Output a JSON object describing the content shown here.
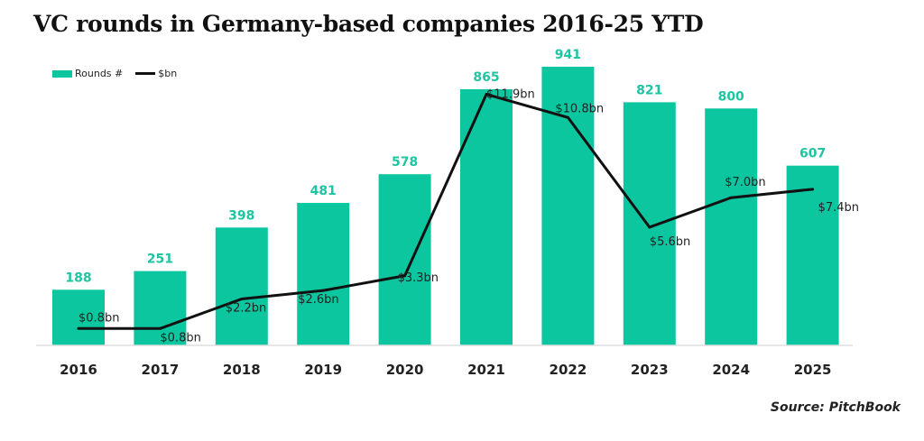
{
  "chart_data": {
    "type": "bar+line",
    "title": "VC rounds in Germany-based companies 2016-25 YTD",
    "categories": [
      "2016",
      "2017",
      "2018",
      "2019",
      "2020",
      "2021",
      "2022",
      "2023",
      "2024",
      "2025"
    ],
    "series": [
      {
        "name": "Rounds #",
        "type": "bar",
        "values": [
          188,
          251,
          398,
          481,
          578,
          865,
          941,
          821,
          800,
          607
        ],
        "color": "#0cc6a0"
      },
      {
        "name": "$bn",
        "type": "line",
        "values": [
          0.8,
          0.8,
          2.2,
          2.6,
          3.3,
          11.9,
          10.8,
          5.6,
          7.0,
          7.4
        ],
        "labels": [
          "$0.8bn",
          "$0.8bn",
          "$2.2bn",
          "$2.6bn",
          "$3.3bn",
          "$11.9bn",
          "$10.8bn",
          "$5.6bn",
          "$7.0bn",
          "$7.4bn"
        ],
        "color": "#111111"
      }
    ],
    "legend_placement": "top-left",
    "grid": false,
    "source": "Source: PitchBook"
  }
}
